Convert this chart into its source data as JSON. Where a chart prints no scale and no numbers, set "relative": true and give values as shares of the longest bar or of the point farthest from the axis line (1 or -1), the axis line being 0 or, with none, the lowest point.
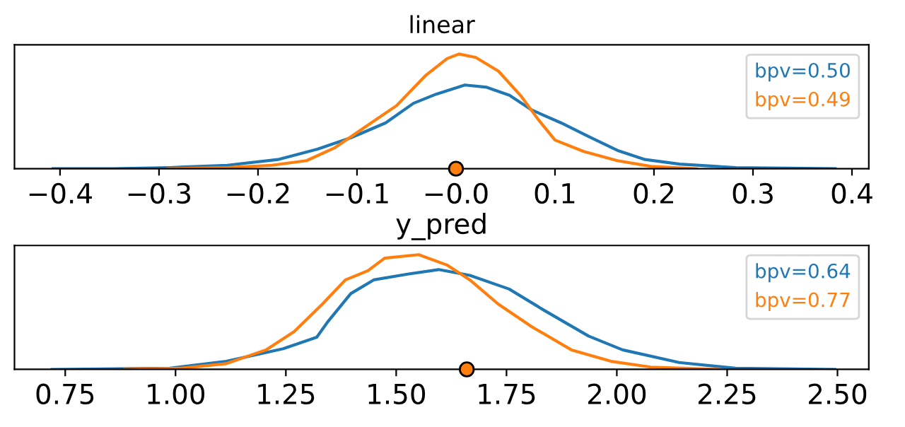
{
  "chart_data": [
    {
      "type": "line",
      "title": "linear",
      "relative": true,
      "legend": "top right",
      "grid": false,
      "tick_labels": "x",
      "xlim": [
        -0.446,
        0.417
      ],
      "xticks": [
        {
          "value": -0.4,
          "label": "−0.4"
        },
        {
          "value": -0.3,
          "label": "−0.3"
        },
        {
          "value": -0.2,
          "label": "−0.2"
        },
        {
          "value": -0.1,
          "label": "−0.1"
        },
        {
          "value": 0,
          "label": "−0.0"
        },
        {
          "value": 0.1,
          "label": "0.1"
        },
        {
          "value": 0.2,
          "label": "0.2"
        },
        {
          "value": 0.3,
          "label": "0.3"
        },
        {
          "value": 0.4,
          "label": "0.4"
        }
      ],
      "series": [
        {
          "name": "bpv=0.50",
          "color": "#1f77b4",
          "x": [
            -0.407,
            -0.346,
            -0.289,
            -0.231,
            -0.18,
            -0.14,
            -0.106,
            -0.071,
            -0.043,
            -0.02,
            0.009,
            0.031,
            0.054,
            0.077,
            0.106,
            0.134,
            0.163,
            0.191,
            0.226,
            0.283,
            0.383
          ],
          "values": [
            0,
            0,
            0.01,
            0.03,
            0.08,
            0.17,
            0.27,
            0.4,
            0.57,
            0.65,
            0.73,
            0.71,
            0.64,
            0.51,
            0.4,
            0.28,
            0.16,
            0.08,
            0.04,
            0.01,
            0
          ]
        },
        {
          "name": "bpv=0.49",
          "color": "#ff7f0e",
          "x": [
            -0.291,
            -0.231,
            -0.186,
            -0.151,
            -0.123,
            -0.094,
            -0.06,
            -0.031,
            -0.009,
            0.003,
            0.02,
            0.043,
            0.066,
            0.083,
            0.1,
            0.129,
            0.163,
            0.197,
            0.243
          ],
          "values": [
            0,
            0.01,
            0.03,
            0.07,
            0.18,
            0.35,
            0.55,
            0.81,
            0.96,
            1.0,
            0.97,
            0.85,
            0.63,
            0.43,
            0.25,
            0.15,
            0.07,
            0.02,
            0
          ]
        },
        {
          "type": "scatter",
          "color": "#ff7f0e",
          "marker": "circle",
          "x": [
            0.0
          ],
          "values": [
            0
          ]
        }
      ]
    },
    {
      "type": "line",
      "title": "y_pred",
      "relative": true,
      "legend": "top right",
      "grid": false,
      "tick_labels": "x",
      "xlim": [
        0.635,
        2.571
      ],
      "xticks": [
        {
          "value": 0.75,
          "label": "0.75"
        },
        {
          "value": 1.0,
          "label": "1.00"
        },
        {
          "value": 1.25,
          "label": "1.25"
        },
        {
          "value": 1.5,
          "label": "1.50"
        },
        {
          "value": 1.75,
          "label": "1.75"
        },
        {
          "value": 2.0,
          "label": "2.00"
        },
        {
          "value": 2.25,
          "label": "2.25"
        },
        {
          "value": 2.5,
          "label": "2.50"
        }
      ],
      "series": [
        {
          "name": "bpv=0.64",
          "color": "#1f77b4",
          "x": [
            0.72,
            0.987,
            1.115,
            1.244,
            1.32,
            1.346,
            1.397,
            1.449,
            1.526,
            1.596,
            1.667,
            1.756,
            1.833,
            1.936,
            2.013,
            2.141,
            2.269,
            2.494
          ],
          "values": [
            0,
            0.01,
            0.07,
            0.18,
            0.28,
            0.42,
            0.66,
            0.78,
            0.83,
            0.87,
            0.82,
            0.7,
            0.52,
            0.29,
            0.17,
            0.06,
            0.01,
            0
          ]
        },
        {
          "name": "bpv=0.77",
          "color": "#ff7f0e",
          "x": [
            0.885,
            1.013,
            1.115,
            1.205,
            1.269,
            1.333,
            1.385,
            1.436,
            1.474,
            1.551,
            1.615,
            1.667,
            1.731,
            1.808,
            1.897,
            1.987,
            2.077,
            2.231
          ],
          "values": [
            0,
            0.01,
            0.05,
            0.17,
            0.33,
            0.57,
            0.78,
            0.86,
            0.97,
            1.0,
            0.91,
            0.78,
            0.57,
            0.37,
            0.17,
            0.07,
            0.02,
            0
          ]
        },
        {
          "type": "scatter",
          "color": "#ff7f0e",
          "marker": "circle",
          "x": [
            1.66
          ],
          "values": [
            0
          ]
        }
      ]
    }
  ]
}
